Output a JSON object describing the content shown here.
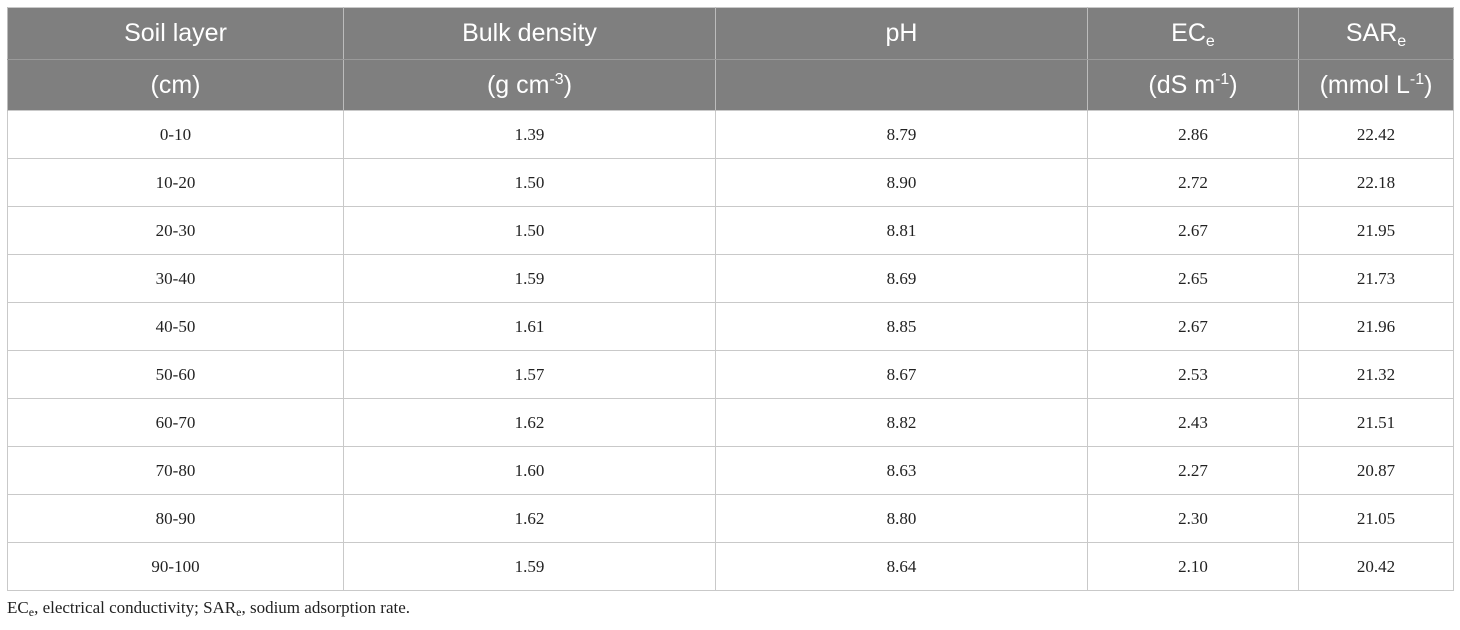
{
  "table": {
    "headers": {
      "row1": [
        "Soil layer",
        "Bulk density",
        "pH",
        "EC",
        "SAR"
      ],
      "row1_subscripts": [
        "",
        "",
        "",
        "e",
        "e"
      ],
      "row2": {
        "layer_unit": "(cm)",
        "bd_unit_main": "(g cm",
        "bd_unit_sup": "-3",
        "bd_unit_end": ")",
        "ph_unit": "",
        "ec_unit_main": "(dS m",
        "ec_unit_sup": "-1",
        "ec_unit_end": ")",
        "sar_unit_main": "(mmol L",
        "sar_unit_sup": "-1",
        "sar_unit_end": ")"
      }
    },
    "rows": [
      [
        "0-10",
        "1.39",
        "8.79",
        "2.86",
        "22.42"
      ],
      [
        "10-20",
        "1.50",
        "8.90",
        "2.72",
        "22.18"
      ],
      [
        "20-30",
        "1.50",
        "8.81",
        "2.67",
        "21.95"
      ],
      [
        "30-40",
        "1.59",
        "8.69",
        "2.65",
        "21.73"
      ],
      [
        "40-50",
        "1.61",
        "8.85",
        "2.67",
        "21.96"
      ],
      [
        "50-60",
        "1.57",
        "8.67",
        "2.53",
        "21.32"
      ],
      [
        "60-70",
        "1.62",
        "8.82",
        "2.43",
        "21.51"
      ],
      [
        "70-80",
        "1.60",
        "8.63",
        "2.27",
        "20.87"
      ],
      [
        "80-90",
        "1.62",
        "8.80",
        "2.30",
        "21.05"
      ],
      [
        "90-100",
        "1.59",
        "8.64",
        "2.10",
        "20.42"
      ]
    ]
  },
  "footnote": {
    "ec_abbr": "EC",
    "ec_sub": "e",
    "ec_text": ", electrical conductivity; ",
    "sar_abbr": "SAR",
    "sar_sub": "e",
    "sar_text": ", sodium adsorption rate."
  },
  "colors": {
    "header_bg": "#7f7f7f",
    "header_text": "#ffffff",
    "border": "#c9c9c9"
  }
}
